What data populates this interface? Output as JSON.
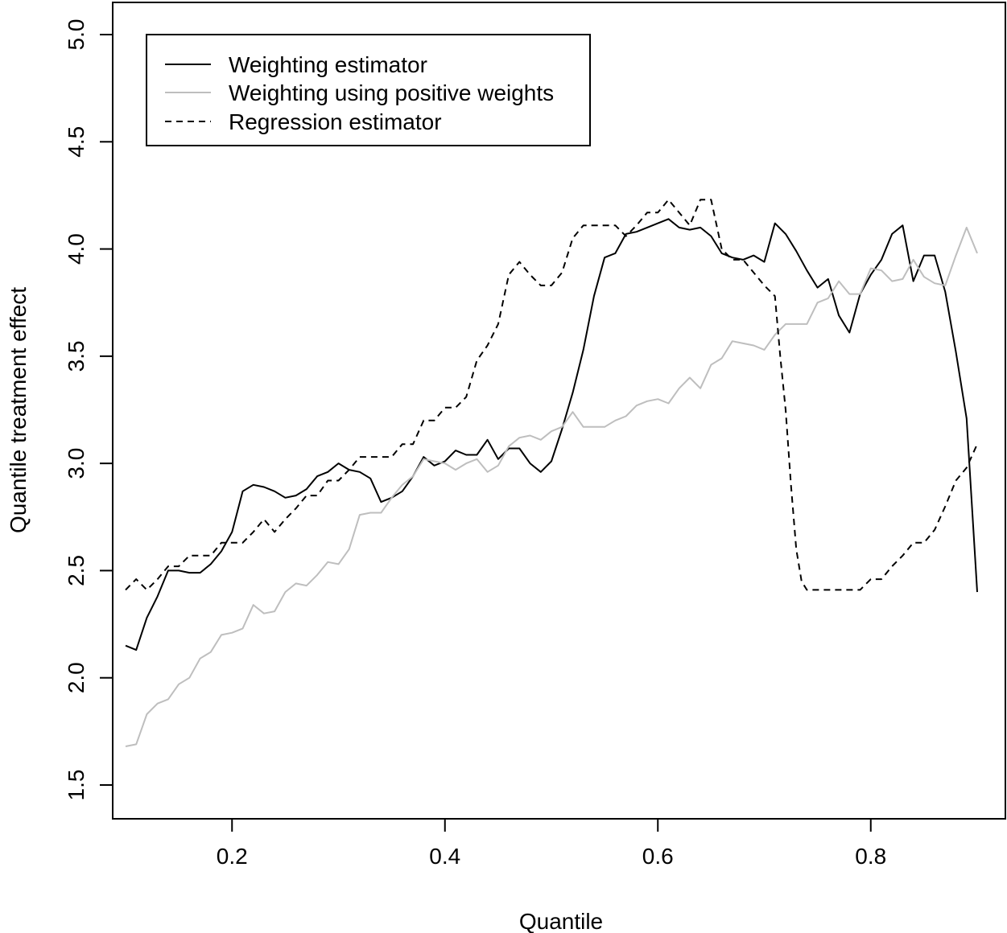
{
  "chart_data": {
    "type": "line",
    "title": "",
    "xlabel": "Quantile",
    "ylabel": "Quantile treatment effect",
    "xlim": [
      0.1,
      0.9
    ],
    "ylim": [
      1.5,
      5.0
    ],
    "x_ticks": [
      0.2,
      0.4,
      0.6,
      0.8
    ],
    "x_tick_labels": [
      "0.2",
      "0.4",
      "0.6",
      "0.8"
    ],
    "y_ticks": [
      1.5,
      2.0,
      2.5,
      3.0,
      3.5,
      4.0,
      4.5,
      5.0
    ],
    "y_tick_labels": [
      "1.5",
      "2.0",
      "2.5",
      "3.0",
      "3.5",
      "4.0",
      "4.5",
      "5.0"
    ],
    "grid": false,
    "legend": "top-left",
    "series": [
      {
        "name": "Weighting estimator",
        "color": "#000000",
        "style": "solid",
        "x": [
          0.1,
          0.11,
          0.12,
          0.13,
          0.14,
          0.15,
          0.16,
          0.17,
          0.18,
          0.19,
          0.2,
          0.21,
          0.22,
          0.23,
          0.24,
          0.25,
          0.26,
          0.27,
          0.28,
          0.29,
          0.3,
          0.31,
          0.32,
          0.33,
          0.34,
          0.35,
          0.36,
          0.37,
          0.38,
          0.39,
          0.4,
          0.41,
          0.42,
          0.43,
          0.44,
          0.45,
          0.46,
          0.47,
          0.48,
          0.49,
          0.5,
          0.51,
          0.52,
          0.53,
          0.54,
          0.55,
          0.56,
          0.57,
          0.58,
          0.59,
          0.6,
          0.61,
          0.62,
          0.63,
          0.64,
          0.65,
          0.66,
          0.67,
          0.68,
          0.69,
          0.7,
          0.71,
          0.72,
          0.73,
          0.74,
          0.75,
          0.76,
          0.77,
          0.78,
          0.79,
          0.8,
          0.81,
          0.82,
          0.83,
          0.84,
          0.85,
          0.86,
          0.87,
          0.88,
          0.89,
          0.9
        ],
        "values": [
          2.15,
          2.13,
          2.28,
          2.38,
          2.5,
          2.5,
          2.49,
          2.49,
          2.53,
          2.59,
          2.68,
          2.87,
          2.9,
          2.89,
          2.87,
          2.84,
          2.85,
          2.88,
          2.94,
          2.96,
          3.0,
          2.97,
          2.96,
          2.93,
          2.82,
          2.84,
          2.87,
          2.94,
          3.03,
          2.99,
          3.01,
          3.06,
          3.04,
          3.04,
          3.11,
          3.02,
          3.07,
          3.07,
          3.0,
          2.96,
          3.01,
          3.16,
          3.33,
          3.53,
          3.78,
          3.96,
          3.98,
          4.07,
          4.08,
          4.1,
          4.12,
          4.14,
          4.1,
          4.09,
          4.1,
          4.06,
          3.98,
          3.96,
          3.95,
          3.97,
          3.94,
          4.12,
          4.07,
          3.99,
          3.9,
          3.82,
          3.86,
          3.69,
          3.61,
          3.79,
          3.88,
          3.95,
          4.07,
          4.11,
          3.85,
          3.97,
          3.97,
          3.8,
          3.52,
          3.21,
          2.4
        ]
      },
      {
        "name": "Weighting using positive weights",
        "color": "#bebebe",
        "style": "solid",
        "x": [
          0.1,
          0.11,
          0.12,
          0.13,
          0.14,
          0.15,
          0.16,
          0.17,
          0.18,
          0.19,
          0.2,
          0.21,
          0.22,
          0.23,
          0.24,
          0.25,
          0.26,
          0.27,
          0.28,
          0.29,
          0.3,
          0.31,
          0.32,
          0.33,
          0.34,
          0.35,
          0.36,
          0.37,
          0.38,
          0.39,
          0.4,
          0.41,
          0.42,
          0.43,
          0.44,
          0.45,
          0.46,
          0.47,
          0.48,
          0.49,
          0.5,
          0.51,
          0.52,
          0.53,
          0.54,
          0.55,
          0.56,
          0.57,
          0.58,
          0.59,
          0.6,
          0.61,
          0.62,
          0.63,
          0.64,
          0.65,
          0.66,
          0.67,
          0.68,
          0.69,
          0.7,
          0.71,
          0.72,
          0.73,
          0.74,
          0.75,
          0.76,
          0.77,
          0.78,
          0.79,
          0.8,
          0.81,
          0.82,
          0.83,
          0.84,
          0.85,
          0.86,
          0.87,
          0.88,
          0.89,
          0.9
        ],
        "values": [
          1.68,
          1.69,
          1.83,
          1.88,
          1.9,
          1.97,
          2.0,
          2.09,
          2.12,
          2.2,
          2.21,
          2.23,
          2.34,
          2.3,
          2.31,
          2.4,
          2.44,
          2.43,
          2.48,
          2.54,
          2.53,
          2.6,
          2.76,
          2.77,
          2.77,
          2.84,
          2.9,
          2.94,
          3.02,
          3.01,
          3.0,
          2.97,
          3.0,
          3.02,
          2.96,
          2.99,
          3.08,
          3.12,
          3.13,
          3.11,
          3.15,
          3.17,
          3.24,
          3.17,
          3.17,
          3.17,
          3.2,
          3.22,
          3.27,
          3.29,
          3.3,
          3.28,
          3.35,
          3.4,
          3.35,
          3.46,
          3.49,
          3.57,
          3.56,
          3.55,
          3.53,
          3.6,
          3.65,
          3.65,
          3.65,
          3.75,
          3.77,
          3.85,
          3.79,
          3.79,
          3.91,
          3.9,
          3.85,
          3.86,
          3.95,
          3.87,
          3.84,
          3.83,
          3.97,
          4.1,
          3.98
        ]
      },
      {
        "name": "Regression estimator",
        "color": "#000000",
        "style": "dashed",
        "x": [
          0.1,
          0.11,
          0.12,
          0.13,
          0.14,
          0.15,
          0.16,
          0.17,
          0.18,
          0.19,
          0.2,
          0.21,
          0.22,
          0.23,
          0.24,
          0.25,
          0.26,
          0.27,
          0.28,
          0.29,
          0.3,
          0.31,
          0.32,
          0.33,
          0.34,
          0.35,
          0.36,
          0.37,
          0.38,
          0.39,
          0.4,
          0.41,
          0.42,
          0.43,
          0.44,
          0.45,
          0.46,
          0.47,
          0.48,
          0.49,
          0.5,
          0.51,
          0.52,
          0.53,
          0.54,
          0.55,
          0.56,
          0.57,
          0.58,
          0.59,
          0.6,
          0.61,
          0.62,
          0.63,
          0.64,
          0.65,
          0.66,
          0.67,
          0.68,
          0.69,
          0.7,
          0.71,
          0.715,
          0.72,
          0.725,
          0.73,
          0.735,
          0.74,
          0.75,
          0.76,
          0.77,
          0.78,
          0.79,
          0.8,
          0.81,
          0.82,
          0.83,
          0.84,
          0.85,
          0.86,
          0.87,
          0.88,
          0.89,
          0.9
        ],
        "values": [
          2.41,
          2.46,
          2.41,
          2.46,
          2.52,
          2.52,
          2.57,
          2.57,
          2.57,
          2.63,
          2.63,
          2.63,
          2.68,
          2.74,
          2.68,
          2.74,
          2.79,
          2.85,
          2.85,
          2.92,
          2.92,
          2.97,
          3.03,
          3.03,
          3.03,
          3.03,
          3.09,
          3.09,
          3.2,
          3.2,
          3.26,
          3.26,
          3.31,
          3.48,
          3.55,
          3.65,
          3.88,
          3.94,
          3.88,
          3.83,
          3.83,
          3.89,
          4.05,
          4.11,
          4.11,
          4.11,
          4.11,
          4.06,
          4.11,
          4.17,
          4.17,
          4.23,
          4.17,
          4.11,
          4.23,
          4.23,
          4.0,
          3.95,
          3.95,
          3.89,
          3.83,
          3.78,
          3.5,
          3.25,
          2.9,
          2.6,
          2.45,
          2.41,
          2.41,
          2.41,
          2.41,
          2.41,
          2.41,
          2.46,
          2.46,
          2.52,
          2.57,
          2.63,
          2.63,
          2.69,
          2.8,
          2.92,
          2.98,
          3.09
        ]
      }
    ]
  }
}
